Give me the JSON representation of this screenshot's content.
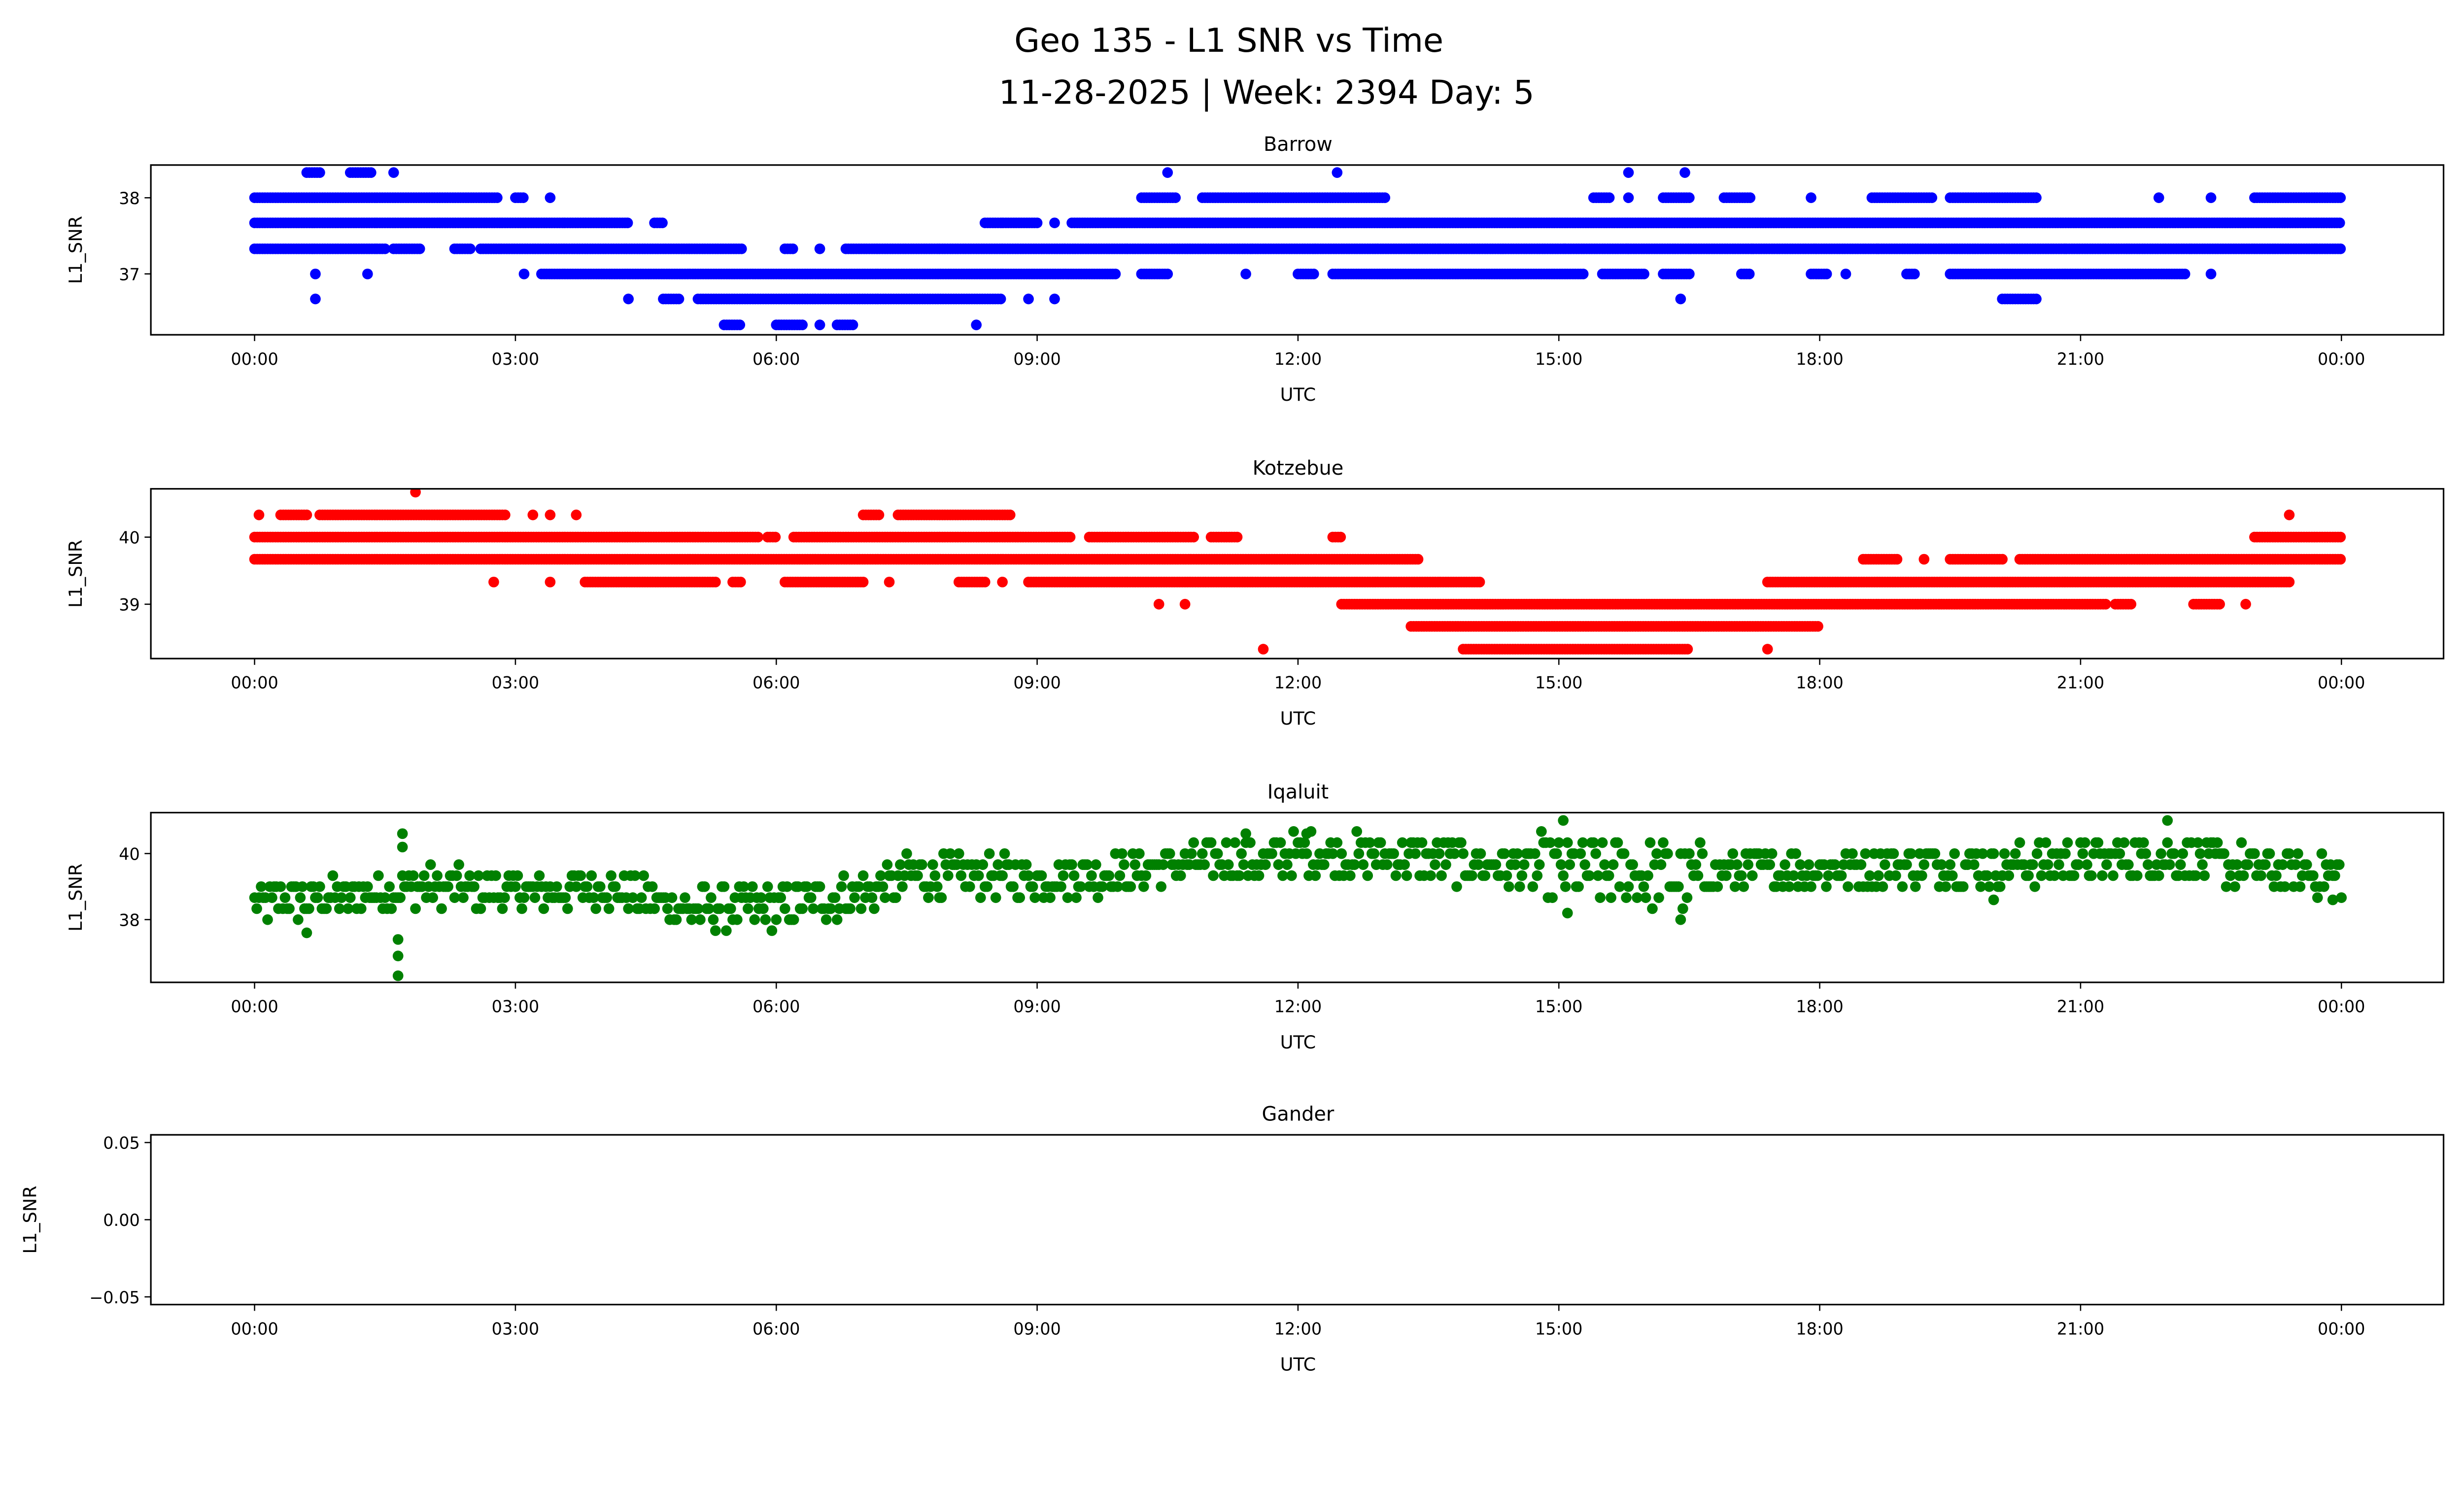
{
  "title_line1": "Geo 135 - L1 SNR vs Time",
  "title_line2": "11-28-2025 | Week: 2394 Day: 5",
  "chart_data": [
    {
      "type": "scatter",
      "title": "Barrow",
      "xlabel": "UTC",
      "ylabel": "L1_SNR",
      "color": "#0000ff",
      "xlim_hours": [
        -1.2,
        25.2
      ],
      "ylim": [
        36.2,
        38.43
      ],
      "xticks": [
        "00:00",
        "03:00",
        "06:00",
        "09:00",
        "12:00",
        "15:00",
        "18:00",
        "21:00",
        "00:00"
      ],
      "yticks": [
        {
          "v": 37,
          "label": "37"
        },
        {
          "v": 38,
          "label": "38"
        }
      ],
      "runs": [
        [
          38.33,
          0.6,
          0.75
        ],
        [
          38.33,
          1.1,
          1.35
        ],
        [
          38.33,
          1.6,
          1.6
        ],
        [
          38.33,
          10.5,
          10.5
        ],
        [
          38.33,
          12.45,
          12.45
        ],
        [
          38.33,
          15.8,
          15.8
        ],
        [
          38.33,
          16.45,
          16.45
        ],
        [
          38,
          0,
          2.8
        ],
        [
          38,
          3.0,
          3.1
        ],
        [
          38,
          3.4,
          3.4
        ],
        [
          38,
          10.2,
          10.6
        ],
        [
          38,
          10.9,
          13.0
        ],
        [
          38,
          15.4,
          15.6
        ],
        [
          38,
          15.8,
          15.8
        ],
        [
          38,
          16.2,
          16.5
        ],
        [
          38,
          16.9,
          17.2
        ],
        [
          38,
          17.9,
          17.9
        ],
        [
          38,
          18.6,
          19.3
        ],
        [
          38,
          19.5,
          20.5
        ],
        [
          38,
          21.9,
          21.9
        ],
        [
          38,
          22.5,
          22.5
        ],
        [
          38,
          23.0,
          24
        ],
        [
          37.67,
          0,
          4.3
        ],
        [
          37.67,
          4.6,
          4.7
        ],
        [
          37.67,
          8.4,
          9.0
        ],
        [
          37.67,
          9.2,
          9.2
        ],
        [
          37.67,
          9.4,
          24
        ],
        [
          37.33,
          0,
          1.5
        ],
        [
          37.33,
          1.6,
          1.9
        ],
        [
          37.33,
          2.3,
          2.5
        ],
        [
          37.33,
          2.6,
          5.6
        ],
        [
          37.33,
          6.1,
          6.2
        ],
        [
          37.33,
          6.5,
          6.5
        ],
        [
          37.33,
          6.8,
          24
        ],
        [
          37,
          0.7,
          0.7
        ],
        [
          37,
          1.3,
          1.3
        ],
        [
          37,
          3.1,
          3.1
        ],
        [
          37,
          3.3,
          9.9
        ],
        [
          37,
          10.2,
          10.5
        ],
        [
          37,
          11.4,
          11.4
        ],
        [
          37,
          12.0,
          12.2
        ],
        [
          37,
          12.4,
          15.3
        ],
        [
          37,
          15.5,
          16.0
        ],
        [
          37,
          16.2,
          16.5
        ],
        [
          37,
          17.1,
          17.2
        ],
        [
          37,
          17.9,
          18.1
        ],
        [
          37,
          18.3,
          18.3
        ],
        [
          37,
          19.0,
          19.1
        ],
        [
          37,
          19.5,
          22.2
        ],
        [
          37,
          22.5,
          22.5
        ],
        [
          36.67,
          0.7,
          0.7
        ],
        [
          36.67,
          4.3,
          4.3
        ],
        [
          36.67,
          4.7,
          4.9
        ],
        [
          36.67,
          5.1,
          8.6
        ],
        [
          36.67,
          8.9,
          8.9
        ],
        [
          36.67,
          9.2,
          9.2
        ],
        [
          36.67,
          16.4,
          16.4
        ],
        [
          36.67,
          20.1,
          20.5
        ],
        [
          36.33,
          5.4,
          5.6
        ],
        [
          36.33,
          6.0,
          6.3
        ],
        [
          36.33,
          6.5,
          6.5
        ],
        [
          36.33,
          6.7,
          6.9
        ],
        [
          36.33,
          8.3,
          8.3
        ]
      ]
    },
    {
      "type": "scatter",
      "title": "Kotzebue",
      "xlabel": "UTC",
      "ylabel": "L1_SNR",
      "color": "#ff0000",
      "xlim_hours": [
        -1.2,
        25.2
      ],
      "ylim": [
        38.19,
        40.72
      ],
      "xticks": [
        "00:00",
        "03:00",
        "06:00",
        "09:00",
        "12:00",
        "15:00",
        "18:00",
        "21:00",
        "00:00"
      ],
      "yticks": [
        {
          "v": 39,
          "label": "39"
        },
        {
          "v": 40,
          "label": "40"
        }
      ],
      "runs": [
        [
          40.67,
          1.85,
          1.85
        ],
        [
          40.33,
          0.05,
          0.05
        ],
        [
          40.33,
          0.3,
          0.6
        ],
        [
          40.33,
          0.75,
          2.9
        ],
        [
          40.33,
          3.2,
          3.2
        ],
        [
          40.33,
          3.4,
          3.4
        ],
        [
          40.33,
          3.7,
          3.7
        ],
        [
          40.33,
          7.0,
          7.2
        ],
        [
          40.33,
          7.4,
          8.7
        ],
        [
          40.33,
          23.4,
          23.4
        ],
        [
          40,
          0,
          5.8
        ],
        [
          40,
          5.9,
          6.0
        ],
        [
          40,
          6.2,
          9.4
        ],
        [
          40,
          9.6,
          10.8
        ],
        [
          40,
          11.0,
          11.3
        ],
        [
          40,
          12.4,
          12.5
        ],
        [
          40,
          23.0,
          24
        ],
        [
          39.67,
          0,
          13.4
        ],
        [
          39.67,
          18.5,
          18.9
        ],
        [
          39.67,
          19.2,
          19.2
        ],
        [
          39.67,
          19.5,
          20.1
        ],
        [
          39.67,
          20.3,
          24
        ],
        [
          39.33,
          2.75,
          2.75
        ],
        [
          39.33,
          3.4,
          3.4
        ],
        [
          39.33,
          3.8,
          5.3
        ],
        [
          39.33,
          5.5,
          5.6
        ],
        [
          39.33,
          6.1,
          7.0
        ],
        [
          39.33,
          7.3,
          7.3
        ],
        [
          39.33,
          8.1,
          8.4
        ],
        [
          39.33,
          8.6,
          8.6
        ],
        [
          39.33,
          8.9,
          14.1
        ],
        [
          39.33,
          17.4,
          23.4
        ],
        [
          39,
          10.4,
          10.4
        ],
        [
          39,
          10.7,
          10.7
        ],
        [
          39,
          12.5,
          21.3
        ],
        [
          39,
          21.4,
          21.6
        ],
        [
          39,
          22.3,
          22.6
        ],
        [
          39,
          22.9,
          22.9
        ],
        [
          38.67,
          13.3,
          18.0
        ],
        [
          38.33,
          11.6,
          11.6
        ],
        [
          38.33,
          13.9,
          16.5
        ],
        [
          38.33,
          17.4,
          17.4
        ]
      ]
    },
    {
      "type": "scatter",
      "title": "Iqaluit",
      "xlabel": "UTC",
      "ylabel": "L1_SNR",
      "color": "#008000",
      "xlim_hours": [
        -1.2,
        25.2
      ],
      "ylim": [
        36.1,
        41.24
      ],
      "xticks": [
        "00:00",
        "03:00",
        "06:00",
        "09:00",
        "12:00",
        "15:00",
        "18:00",
        "21:00",
        "00:00"
      ],
      "yticks": [
        {
          "v": 38,
          "label": "38"
        },
        {
          "v": 40,
          "label": "40"
        }
      ],
      "trend": [
        [
          0,
          38.5
        ],
        [
          1,
          38.7
        ],
        [
          2,
          39.0
        ],
        [
          3,
          38.8
        ],
        [
          4,
          39.0
        ],
        [
          5,
          38.3
        ],
        [
          6,
          38.4
        ],
        [
          7,
          38.8
        ],
        [
          7.5,
          39.3
        ],
        [
          9,
          39.3
        ],
        [
          10,
          39.4
        ],
        [
          10.5,
          39.7
        ],
        [
          11.5,
          39.8
        ],
        [
          12,
          40.0
        ],
        [
          13,
          39.9
        ],
        [
          14,
          39.7
        ],
        [
          15,
          39.5
        ],
        [
          16,
          39.4
        ],
        [
          16.5,
          39.2
        ],
        [
          17,
          39.5
        ],
        [
          18,
          39.5
        ],
        [
          19,
          39.7
        ],
        [
          20,
          39.6
        ],
        [
          21,
          39.8
        ],
        [
          22,
          39.9
        ],
        [
          23,
          39.6
        ],
        [
          24,
          39.3
        ]
      ],
      "spread": 0.6,
      "outliers": [
        [
          1.65,
          36.3
        ],
        [
          1.65,
          36.9
        ],
        [
          1.65,
          37.4
        ],
        [
          1.7,
          40.6
        ],
        [
          1.7,
          40.2
        ],
        [
          0.6,
          37.6
        ],
        [
          15.05,
          41.0
        ],
        [
          22.0,
          41.0
        ],
        [
          11.4,
          40.6
        ],
        [
          12.1,
          40.6
        ],
        [
          16.4,
          38.0
        ],
        [
          15.1,
          38.2
        ],
        [
          20.0,
          38.6
        ],
        [
          23.9,
          38.6
        ]
      ]
    },
    {
      "type": "scatter",
      "title": "Gander",
      "xlabel": "UTC",
      "ylabel": "L1_SNR",
      "color": "#000000",
      "xlim_hours": [
        -1.2,
        25.2
      ],
      "ylim": [
        -0.055,
        0.055
      ],
      "xticks": [
        "00:00",
        "03:00",
        "06:00",
        "09:00",
        "12:00",
        "15:00",
        "18:00",
        "21:00",
        "00:00"
      ],
      "yticks": [
        {
          "v": -0.05,
          "label": "−0.05"
        },
        {
          "v": 0,
          "label": "0.00"
        },
        {
          "v": 0.05,
          "label": "0.05"
        }
      ],
      "runs": []
    }
  ]
}
